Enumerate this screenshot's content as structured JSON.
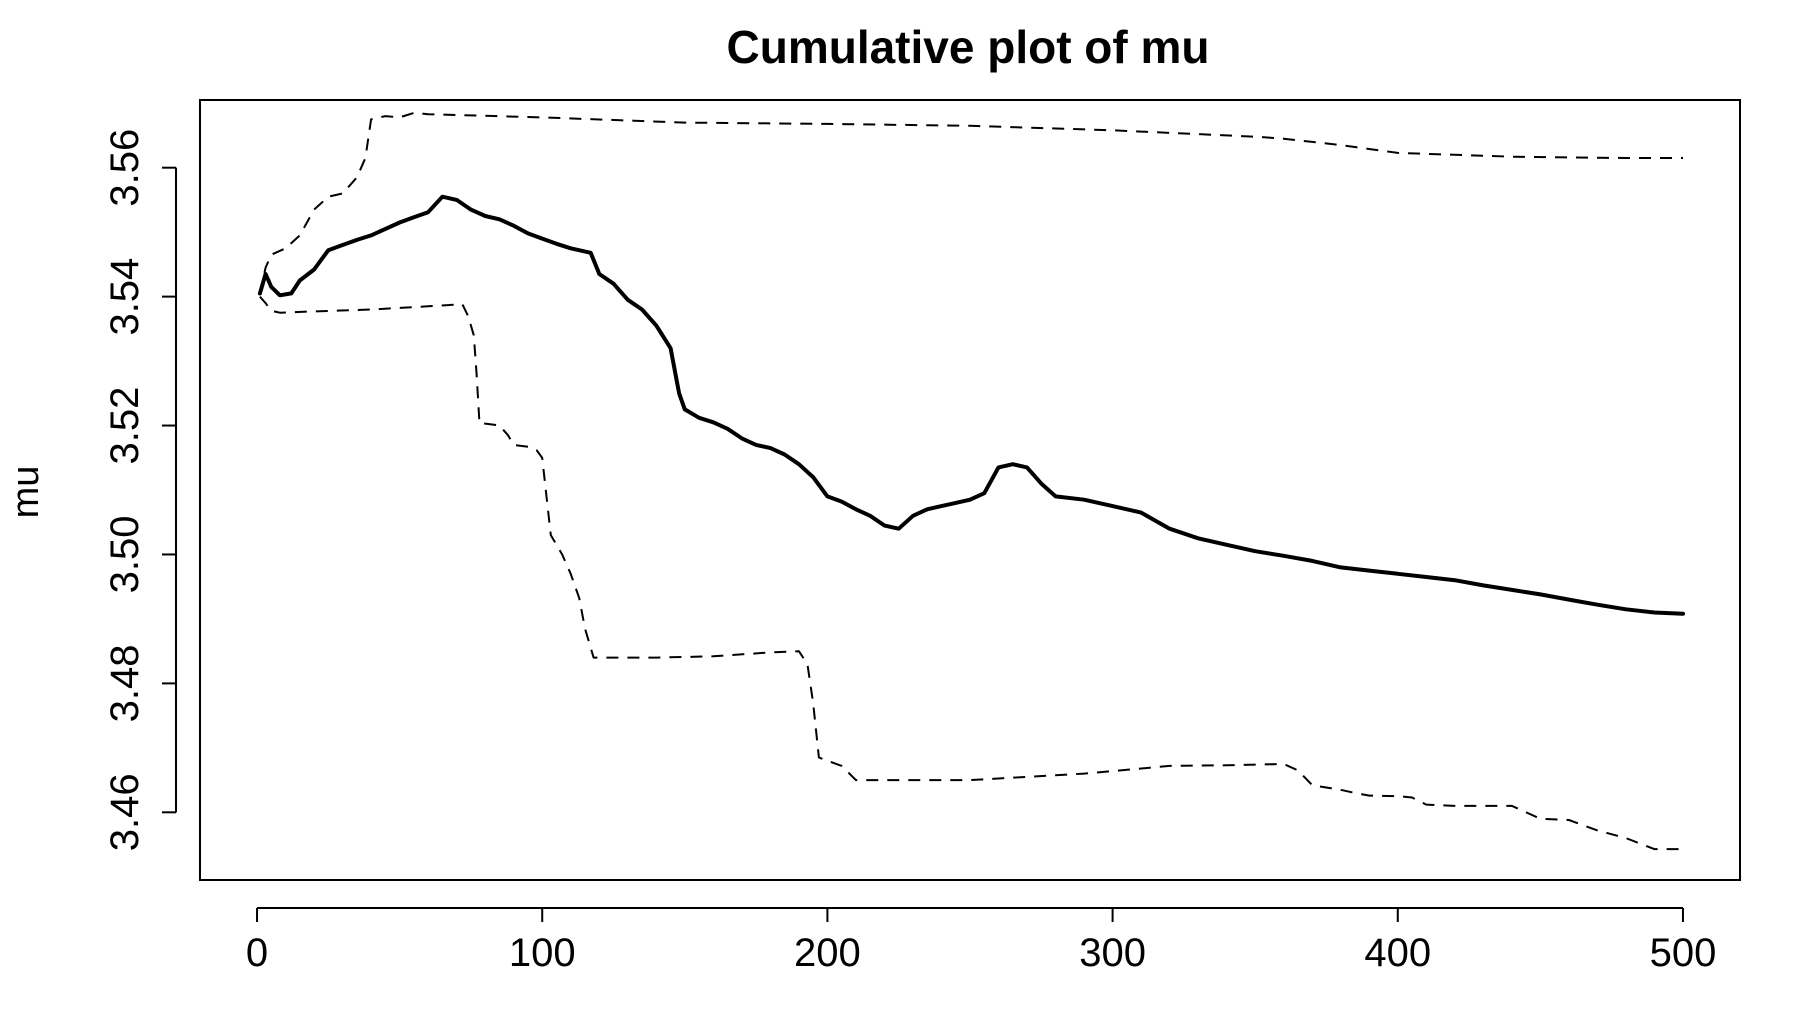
{
  "chart_data": {
    "type": "line",
    "title": "Cumulative plot of mu",
    "xlabel": "",
    "ylabel": "mu",
    "xlim": [
      -20,
      520
    ],
    "ylim": [
      3.4495,
      3.5705
    ],
    "xticks": [
      0,
      100,
      200,
      300,
      400,
      500
    ],
    "yticks": [
      3.46,
      3.48,
      3.5,
      3.52,
      3.54,
      3.56
    ],
    "ytick_labels": [
      "3.46",
      "3.48",
      "3.50",
      "3.52",
      "3.54",
      "3.56"
    ],
    "grid": false,
    "legend": "none",
    "series": [
      {
        "style": "solid",
        "x": [
          1,
          3,
          5,
          8,
          12,
          15,
          20,
          25,
          30,
          35,
          40,
          45,
          50,
          55,
          60,
          65,
          70,
          75,
          80,
          85,
          90,
          95,
          100,
          105,
          110,
          117,
          120,
          125,
          130,
          135,
          140,
          145,
          148,
          150,
          155,
          160,
          165,
          170,
          175,
          180,
          185,
          190,
          195,
          200,
          205,
          210,
          215,
          220,
          225,
          230,
          235,
          240,
          245,
          250,
          255,
          260,
          265,
          270,
          275,
          280,
          290,
          300,
          310,
          320,
          330,
          340,
          350,
          360,
          370,
          380,
          390,
          400,
          410,
          420,
          430,
          440,
          450,
          460,
          470,
          480,
          490,
          500
        ],
        "y": [
          3.5405,
          3.5435,
          3.5415,
          3.5402,
          3.5405,
          3.5425,
          3.5442,
          3.5472,
          3.548,
          3.5488,
          3.5495,
          3.5505,
          3.5515,
          3.5523,
          3.5531,
          3.5555,
          3.555,
          3.5535,
          3.5525,
          3.552,
          3.551,
          3.5498,
          3.549,
          3.5482,
          3.5475,
          3.5468,
          3.5435,
          3.542,
          3.5395,
          3.538,
          3.5355,
          3.532,
          3.525,
          3.5225,
          3.5212,
          3.5205,
          3.5195,
          3.518,
          3.517,
          3.5165,
          3.5155,
          3.514,
          3.512,
          3.509,
          3.5082,
          3.507,
          3.506,
          3.5045,
          3.504,
          3.506,
          3.507,
          3.5075,
          3.508,
          3.5085,
          3.5095,
          3.5135,
          3.514,
          3.5135,
          3.511,
          3.509,
          3.5085,
          3.5075,
          3.5065,
          3.504,
          3.5025,
          3.5015,
          3.5005,
          3.4998,
          3.499,
          3.498,
          3.4975,
          3.497,
          3.4965,
          3.496,
          3.4952,
          3.4945,
          3.4938,
          3.493,
          3.4922,
          3.4915,
          3.491,
          3.4908
        ]
      },
      {
        "style": "dashed",
        "x": [
          1,
          3,
          5,
          10,
          15,
          20,
          25,
          30,
          35,
          38,
          40,
          45,
          50,
          55,
          60,
          100,
          150,
          200,
          250,
          300,
          350,
          360,
          380,
          400,
          420,
          440,
          460,
          480,
          500
        ],
        "y": [
          3.5405,
          3.5445,
          3.5465,
          3.5475,
          3.5495,
          3.5535,
          3.5555,
          3.556,
          3.5585,
          3.5615,
          3.5675,
          3.568,
          3.5678,
          3.5685,
          3.5683,
          3.5678,
          3.567,
          3.5668,
          3.5665,
          3.5658,
          3.5648,
          3.5645,
          3.5635,
          3.5623,
          3.562,
          3.5617,
          3.5616,
          3.5615,
          3.5615
        ]
      },
      {
        "style": "dashed",
        "x": [
          1,
          3,
          5,
          8,
          20,
          40,
          60,
          72,
          74,
          76,
          77,
          78,
          80,
          85,
          88,
          90,
          95,
          98,
          100,
          103,
          107,
          110,
          113,
          115,
          118,
          120,
          140,
          160,
          180,
          190,
          193,
          195,
          197,
          200,
          205,
          210,
          230,
          250,
          270,
          290,
          310,
          320,
          340,
          360,
          365,
          370,
          380,
          385,
          390,
          400,
          405,
          410,
          420,
          430,
          440,
          450,
          460,
          470,
          480,
          490,
          500
        ],
        "y": [
          3.54,
          3.539,
          3.5378,
          3.5375,
          3.5377,
          3.538,
          3.5385,
          3.5388,
          3.537,
          3.534,
          3.528,
          3.5203,
          3.5203,
          3.52,
          3.5185,
          3.517,
          3.5167,
          3.5162,
          3.515,
          3.503,
          3.5,
          3.497,
          3.4932,
          3.4885,
          3.484,
          3.484,
          3.484,
          3.4842,
          3.4848,
          3.485,
          3.483,
          3.477,
          3.4685,
          3.468,
          3.4672,
          3.465,
          3.465,
          3.465,
          3.4655,
          3.466,
          3.4668,
          3.4672,
          3.4673,
          3.4675,
          3.4665,
          3.4642,
          3.4635,
          3.463,
          3.4626,
          3.4625,
          3.4623,
          3.4612,
          3.461,
          3.461,
          3.461,
          3.459,
          3.4588,
          3.4572,
          3.456,
          3.4543,
          3.4543
        ]
      }
    ]
  }
}
